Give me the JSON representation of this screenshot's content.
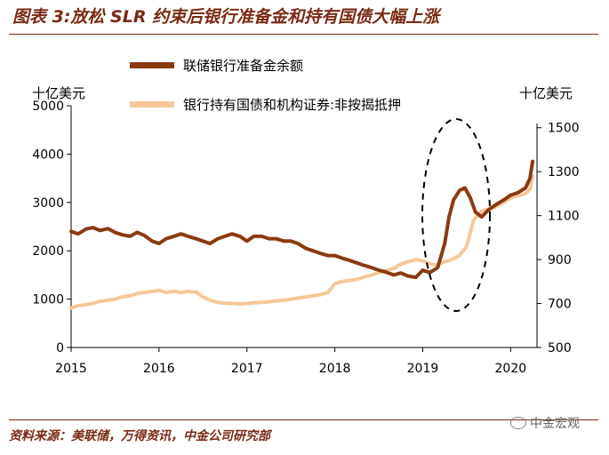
{
  "title": "图表 3:放松 SLR 约束后银行准备金和持有国债大幅上涨",
  "source": "资料来源：美联储，万得资讯，中金公司研究部",
  "watermark": "中金宏观",
  "colors": {
    "series1": "#8B3A12",
    "series2": "#F6C79A",
    "title": "#7a2a12",
    "oval": "#000000"
  },
  "chart_data": {
    "type": "line",
    "x_ticks": [
      "2015",
      "2016",
      "2017",
      "2018",
      "2019",
      "2020"
    ],
    "left_axis": {
      "label": "十亿美元",
      "ylim": [
        0,
        5000
      ],
      "ticks": [
        "0",
        "1000",
        "2000",
        "3000",
        "4000",
        "5000"
      ]
    },
    "right_axis": {
      "label": "十亿美元",
      "ylim": [
        500,
        1600
      ],
      "ticks": [
        "500",
        "700",
        "900",
        "1100",
        "1300",
        "1500"
      ]
    },
    "annotation": "dashed ellipse around 2019 surge",
    "series": [
      {
        "name": "联储银行准备金余额",
        "axis": "left",
        "points": [
          [
            2015.0,
            2400
          ],
          [
            2015.08,
            2350
          ],
          [
            2015.17,
            2450
          ],
          [
            2015.25,
            2480
          ],
          [
            2015.33,
            2420
          ],
          [
            2015.42,
            2460
          ],
          [
            2015.5,
            2380
          ],
          [
            2015.58,
            2330
          ],
          [
            2015.67,
            2300
          ],
          [
            2015.75,
            2380
          ],
          [
            2015.83,
            2320
          ],
          [
            2015.92,
            2200
          ],
          [
            2016.0,
            2150
          ],
          [
            2016.08,
            2250
          ],
          [
            2016.17,
            2300
          ],
          [
            2016.25,
            2350
          ],
          [
            2016.33,
            2300
          ],
          [
            2016.42,
            2250
          ],
          [
            2016.5,
            2200
          ],
          [
            2016.58,
            2150
          ],
          [
            2016.67,
            2250
          ],
          [
            2016.75,
            2300
          ],
          [
            2016.83,
            2350
          ],
          [
            2016.92,
            2300
          ],
          [
            2017.0,
            2200
          ],
          [
            2017.08,
            2300
          ],
          [
            2017.17,
            2300
          ],
          [
            2017.25,
            2250
          ],
          [
            2017.33,
            2250
          ],
          [
            2017.42,
            2200
          ],
          [
            2017.5,
            2200
          ],
          [
            2017.58,
            2150
          ],
          [
            2017.67,
            2050
          ],
          [
            2017.75,
            2000
          ],
          [
            2017.83,
            1950
          ],
          [
            2017.92,
            1900
          ],
          [
            2018.0,
            1900
          ],
          [
            2018.08,
            1850
          ],
          [
            2018.17,
            1800
          ],
          [
            2018.25,
            1750
          ],
          [
            2018.33,
            1700
          ],
          [
            2018.42,
            1650
          ],
          [
            2018.5,
            1600
          ],
          [
            2018.58,
            1560
          ],
          [
            2018.67,
            1500
          ],
          [
            2018.75,
            1540
          ],
          [
            2018.83,
            1480
          ],
          [
            2018.92,
            1450
          ],
          [
            2019.0,
            1600
          ],
          [
            2019.08,
            1550
          ],
          [
            2019.17,
            1650
          ],
          [
            2019.25,
            2150
          ],
          [
            2019.3,
            2700
          ],
          [
            2019.35,
            3050
          ],
          [
            2019.42,
            3250
          ],
          [
            2019.48,
            3300
          ],
          [
            2019.54,
            3100
          ],
          [
            2019.6,
            2800
          ],
          [
            2019.67,
            2700
          ],
          [
            2019.75,
            2850
          ],
          [
            2019.83,
            2950
          ],
          [
            2019.92,
            3050
          ],
          [
            2020.0,
            3150
          ],
          [
            2020.08,
            3200
          ],
          [
            2020.17,
            3300
          ],
          [
            2020.22,
            3500
          ],
          [
            2020.25,
            3850
          ]
        ]
      },
      {
        "name": "银行持有国债和机构证券:非按揭抵押",
        "axis": "right",
        "points": [
          [
            2015.0,
            680
          ],
          [
            2015.08,
            690
          ],
          [
            2015.17,
            695
          ],
          [
            2015.25,
            700
          ],
          [
            2015.33,
            710
          ],
          [
            2015.42,
            715
          ],
          [
            2015.5,
            720
          ],
          [
            2015.58,
            730
          ],
          [
            2015.67,
            735
          ],
          [
            2015.75,
            745
          ],
          [
            2015.83,
            750
          ],
          [
            2015.92,
            755
          ],
          [
            2016.0,
            760
          ],
          [
            2016.08,
            750
          ],
          [
            2016.17,
            755
          ],
          [
            2016.25,
            750
          ],
          [
            2016.33,
            755
          ],
          [
            2016.42,
            752
          ],
          [
            2016.5,
            730
          ],
          [
            2016.58,
            715
          ],
          [
            2016.67,
            705
          ],
          [
            2016.75,
            702
          ],
          [
            2016.83,
            700
          ],
          [
            2016.92,
            698
          ],
          [
            2017.0,
            700
          ],
          [
            2017.08,
            703
          ],
          [
            2017.17,
            705
          ],
          [
            2017.25,
            708
          ],
          [
            2017.33,
            712
          ],
          [
            2017.42,
            715
          ],
          [
            2017.5,
            720
          ],
          [
            2017.58,
            725
          ],
          [
            2017.67,
            730
          ],
          [
            2017.75,
            735
          ],
          [
            2017.83,
            740
          ],
          [
            2017.92,
            750
          ],
          [
            2018.0,
            790
          ],
          [
            2018.08,
            800
          ],
          [
            2018.17,
            805
          ],
          [
            2018.25,
            810
          ],
          [
            2018.33,
            820
          ],
          [
            2018.42,
            830
          ],
          [
            2018.5,
            840
          ],
          [
            2018.58,
            850
          ],
          [
            2018.67,
            860
          ],
          [
            2018.75,
            880
          ],
          [
            2018.83,
            890
          ],
          [
            2018.92,
            900
          ],
          [
            2019.0,
            895
          ],
          [
            2019.08,
            880
          ],
          [
            2019.17,
            875
          ],
          [
            2019.25,
            890
          ],
          [
            2019.33,
            900
          ],
          [
            2019.42,
            920
          ],
          [
            2019.5,
            960
          ],
          [
            2019.58,
            1080
          ],
          [
            2019.67,
            1120
          ],
          [
            2019.75,
            1130
          ],
          [
            2019.83,
            1140
          ],
          [
            2019.92,
            1160
          ],
          [
            2020.0,
            1180
          ],
          [
            2020.08,
            1190
          ],
          [
            2020.17,
            1200
          ],
          [
            2020.22,
            1220
          ],
          [
            2020.25,
            1280
          ]
        ]
      }
    ]
  }
}
